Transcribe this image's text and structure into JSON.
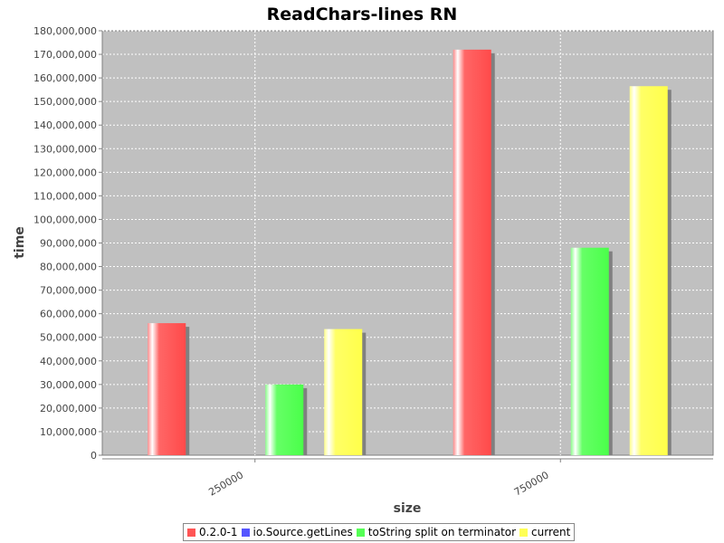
{
  "chart_data": {
    "type": "bar",
    "title": "ReadChars-lines RN",
    "xlabel": "size",
    "ylabel": "time",
    "categories": [
      "250000",
      "750000"
    ],
    "ylim": [
      0,
      180000000
    ],
    "ytick_step": 10000000,
    "grid": true,
    "legend_position": "bottom",
    "series": [
      {
        "name": "0.2.0-1",
        "color": "#ff5555",
        "values": [
          56000000,
          172000000
        ]
      },
      {
        "name": "io.Source.getLines",
        "color": "#5555ff",
        "values": [
          0,
          0
        ]
      },
      {
        "name": "toString split on terminator",
        "color": "#55ff55",
        "values": [
          30000000,
          88000000
        ]
      },
      {
        "name": "current",
        "color": "#ffff55",
        "values": [
          53500000,
          156500000
        ]
      }
    ]
  }
}
